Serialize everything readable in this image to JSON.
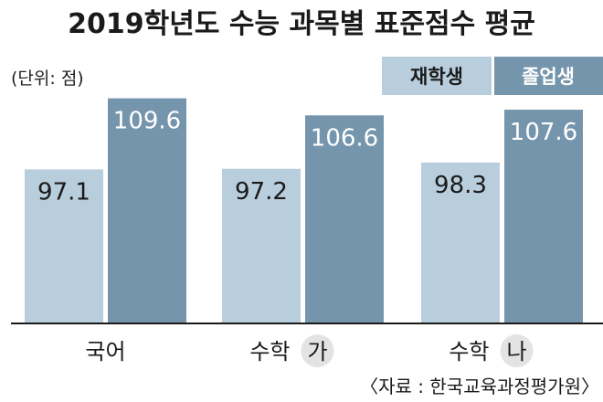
{
  "chart_data": {
    "type": "bar",
    "title": "2019학년도 수능 과목별 표준점수 평균",
    "unit_label": "(단위: 점)",
    "categories": [
      "국어",
      "수학",
      "수학"
    ],
    "category_badges": [
      "",
      "가",
      "나"
    ],
    "series": [
      {
        "name": "재학생",
        "color": "#b9cedc",
        "values": [
          97.1,
          97.2,
          98.3
        ],
        "labels": [
          "97.1",
          "97.2",
          "98.3"
        ]
      },
      {
        "name": "졸업생",
        "color": "#7595ad",
        "values": [
          109.6,
          106.6,
          107.6
        ],
        "labels": [
          "109.6",
          "106.6",
          "107.6"
        ]
      }
    ],
    "legend_placement": "top-right",
    "grid": false,
    "source": "〈자료 : 한국교육과정평가원〉"
  }
}
